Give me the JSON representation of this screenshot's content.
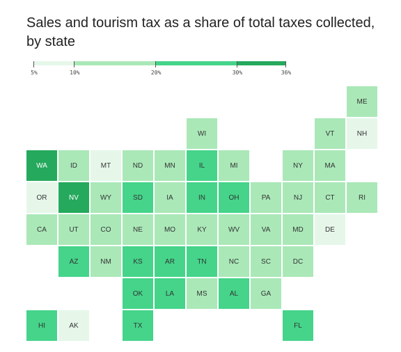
{
  "title": "Sales and tourism tax as a share of total taxes collected, by state",
  "legend": {
    "ticks": [
      {
        "value": 5,
        "label": "5%"
      },
      {
        "value": 10,
        "label": "10%"
      },
      {
        "value": 20,
        "label": "20%"
      },
      {
        "value": 30,
        "label": "30%"
      },
      {
        "value": 36,
        "label": "36%"
      }
    ],
    "bins": [
      {
        "from": 5,
        "to": 10,
        "color": "#e6f7ea"
      },
      {
        "from": 10,
        "to": 20,
        "color": "#aae8b8"
      },
      {
        "from": 20,
        "to": 30,
        "color": "#45d48a"
      },
      {
        "from": 30,
        "to": 36,
        "color": "#25a95c"
      }
    ]
  },
  "states": [
    {
      "abbr": "ME",
      "row": 0,
      "col": 10,
      "bin": 1
    },
    {
      "abbr": "WI",
      "row": 1,
      "col": 5,
      "bin": 1
    },
    {
      "abbr": "VT",
      "row": 1,
      "col": 9,
      "bin": 1
    },
    {
      "abbr": "NH",
      "row": 1,
      "col": 10,
      "bin": 0
    },
    {
      "abbr": "WA",
      "row": 2,
      "col": 0,
      "bin": 3
    },
    {
      "abbr": "ID",
      "row": 2,
      "col": 1,
      "bin": 1
    },
    {
      "abbr": "MT",
      "row": 2,
      "col": 2,
      "bin": 0
    },
    {
      "abbr": "ND",
      "row": 2,
      "col": 3,
      "bin": 1
    },
    {
      "abbr": "MN",
      "row": 2,
      "col": 4,
      "bin": 1
    },
    {
      "abbr": "IL",
      "row": 2,
      "col": 5,
      "bin": 2
    },
    {
      "abbr": "MI",
      "row": 2,
      "col": 6,
      "bin": 1
    },
    {
      "abbr": "NY",
      "row": 2,
      "col": 8,
      "bin": 1
    },
    {
      "abbr": "MA",
      "row": 2,
      "col": 9,
      "bin": 1
    },
    {
      "abbr": "OR",
      "row": 3,
      "col": 0,
      "bin": 0
    },
    {
      "abbr": "NV",
      "row": 3,
      "col": 1,
      "bin": 3
    },
    {
      "abbr": "WY",
      "row": 3,
      "col": 2,
      "bin": 1
    },
    {
      "abbr": "SD",
      "row": 3,
      "col": 3,
      "bin": 2
    },
    {
      "abbr": "IA",
      "row": 3,
      "col": 4,
      "bin": 1
    },
    {
      "abbr": "IN",
      "row": 3,
      "col": 5,
      "bin": 2
    },
    {
      "abbr": "OH",
      "row": 3,
      "col": 6,
      "bin": 2
    },
    {
      "abbr": "PA",
      "row": 3,
      "col": 7,
      "bin": 1
    },
    {
      "abbr": "NJ",
      "row": 3,
      "col": 8,
      "bin": 1
    },
    {
      "abbr": "CT",
      "row": 3,
      "col": 9,
      "bin": 1
    },
    {
      "abbr": "RI",
      "row": 3,
      "col": 10,
      "bin": 1
    },
    {
      "abbr": "CA",
      "row": 4,
      "col": 0,
      "bin": 1
    },
    {
      "abbr": "UT",
      "row": 4,
      "col": 1,
      "bin": 1
    },
    {
      "abbr": "CO",
      "row": 4,
      "col": 2,
      "bin": 1
    },
    {
      "abbr": "NE",
      "row": 4,
      "col": 3,
      "bin": 1
    },
    {
      "abbr": "MO",
      "row": 4,
      "col": 4,
      "bin": 1
    },
    {
      "abbr": "KY",
      "row": 4,
      "col": 5,
      "bin": 1
    },
    {
      "abbr": "WV",
      "row": 4,
      "col": 6,
      "bin": 1
    },
    {
      "abbr": "VA",
      "row": 4,
      "col": 7,
      "bin": 1
    },
    {
      "abbr": "MD",
      "row": 4,
      "col": 8,
      "bin": 1
    },
    {
      "abbr": "DE",
      "row": 4,
      "col": 9,
      "bin": 0
    },
    {
      "abbr": "AZ",
      "row": 5,
      "col": 1,
      "bin": 2
    },
    {
      "abbr": "NM",
      "row": 5,
      "col": 2,
      "bin": 1
    },
    {
      "abbr": "KS",
      "row": 5,
      "col": 3,
      "bin": 2
    },
    {
      "abbr": "AR",
      "row": 5,
      "col": 4,
      "bin": 2
    },
    {
      "abbr": "TN",
      "row": 5,
      "col": 5,
      "bin": 2
    },
    {
      "abbr": "NC",
      "row": 5,
      "col": 6,
      "bin": 1
    },
    {
      "abbr": "SC",
      "row": 5,
      "col": 7,
      "bin": 1
    },
    {
      "abbr": "DC",
      "row": 5,
      "col": 8,
      "bin": 1
    },
    {
      "abbr": "OK",
      "row": 6,
      "col": 3,
      "bin": 2
    },
    {
      "abbr": "LA",
      "row": 6,
      "col": 4,
      "bin": 2
    },
    {
      "abbr": "MS",
      "row": 6,
      "col": 5,
      "bin": 1
    },
    {
      "abbr": "AL",
      "row": 6,
      "col": 6,
      "bin": 2
    },
    {
      "abbr": "GA",
      "row": 6,
      "col": 7,
      "bin": 1
    },
    {
      "abbr": "HI",
      "row": 7,
      "col": 0,
      "bin": 2
    },
    {
      "abbr": "AK",
      "row": 7,
      "col": 1,
      "bin": 0
    },
    {
      "abbr": "TX",
      "row": 7,
      "col": 3,
      "bin": 2
    },
    {
      "abbr": "FL",
      "row": 7,
      "col": 8,
      "bin": 2
    }
  ]
}
